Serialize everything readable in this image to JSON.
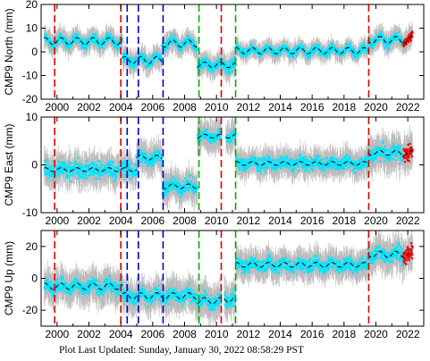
{
  "footer": {
    "text": "Plot Last Updated:   Sunday, January 30, 2022 08:58:29 PST"
  },
  "chart_data": [
    {
      "type": "scatter",
      "ylabel": "CMP9 North (mm)",
      "xlim": [
        1999.0,
        2023.0
      ],
      "ylim": [
        -20,
        20
      ],
      "yticks": [
        -20,
        -10,
        0,
        10,
        20
      ],
      "xticks": [
        2000,
        2002,
        2004,
        2006,
        2008,
        2010,
        2012,
        2014,
        2016,
        2018,
        2020,
        2022
      ],
      "segments": [
        {
          "start": 1999.2,
          "end": 2004.1,
          "level": 4.5,
          "amp": 1.5,
          "spread": 1.6,
          "err": 3.5
        },
        {
          "start": 2004.1,
          "end": 2006.6,
          "level": -3.5,
          "amp": 1.5,
          "spread": 1.8,
          "err": 3.5
        },
        {
          "start": 2006.6,
          "end": 2008.8,
          "level": 3.5,
          "amp": 1.5,
          "spread": 1.6,
          "err": 3.5
        },
        {
          "start": 2008.8,
          "end": 2010.3,
          "level": -5.5,
          "amp": 1.2,
          "spread": 1.8,
          "err": 3.5
        },
        {
          "start": 2010.3,
          "end": 2011.2,
          "level": -5.5,
          "amp": 1.2,
          "spread": 2.0,
          "err": 4.0
        },
        {
          "start": 2011.2,
          "end": 2019.5,
          "level": 0.5,
          "amp": 1.3,
          "spread": 1.5,
          "err": 3.0
        },
        {
          "start": 2019.5,
          "end": 2022.3,
          "level": 5.0,
          "amp": 1.5,
          "spread": 1.8,
          "err": 3.5
        }
      ]
    },
    {
      "type": "scatter",
      "ylabel": "CMP9 East (mm)",
      "xlim": [
        1999.0,
        2023.0
      ],
      "ylim": [
        -10,
        10
      ],
      "yticks": [
        -10,
        0,
        10
      ],
      "xticks": [
        2000,
        2002,
        2004,
        2006,
        2008,
        2010,
        2012,
        2014,
        2016,
        2018,
        2020,
        2022
      ],
      "segments": [
        {
          "start": 1999.2,
          "end": 2004.1,
          "level": -1.0,
          "amp": 0.4,
          "spread": 1.5,
          "err": 2.5
        },
        {
          "start": 2004.1,
          "end": 2005.0,
          "level": -1.0,
          "amp": 0.4,
          "spread": 1.5,
          "err": 2.5
        },
        {
          "start": 2005.0,
          "end": 2006.6,
          "level": 1.5,
          "amp": 0.5,
          "spread": 1.3,
          "err": 2.5
        },
        {
          "start": 2006.6,
          "end": 2008.8,
          "level": -4.5,
          "amp": 0.5,
          "spread": 1.3,
          "err": 2.5
        },
        {
          "start": 2008.8,
          "end": 2010.3,
          "level": 6.0,
          "amp": 0.4,
          "spread": 1.0,
          "err": 2.5
        },
        {
          "start": 2010.6,
          "end": 2011.2,
          "level": 6.0,
          "amp": 0.4,
          "spread": 1.0,
          "err": 2.5
        },
        {
          "start": 2011.2,
          "end": 2019.5,
          "level": 0.3,
          "amp": 0.4,
          "spread": 1.1,
          "err": 2.2
        },
        {
          "start": 2019.5,
          "end": 2022.3,
          "level": 2.5,
          "amp": 0.5,
          "spread": 1.5,
          "err": 2.8
        }
      ]
    },
    {
      "type": "scatter",
      "ylabel": "CMP9 Up (mm)",
      "xlim": [
        1999.0,
        2023.0
      ],
      "ylim": [
        -30,
        30
      ],
      "yticks": [
        -20,
        0,
        20
      ],
      "xticks": [
        2000,
        2002,
        2004,
        2006,
        2008,
        2010,
        2012,
        2014,
        2016,
        2018,
        2020,
        2022
      ],
      "segments": [
        {
          "start": 1999.2,
          "end": 2004.1,
          "level": -5.0,
          "amp": 2.0,
          "spread": 3.5,
          "err": 8.0
        },
        {
          "start": 2004.1,
          "end": 2008.8,
          "level": -11.0,
          "amp": 2.0,
          "spread": 3.5,
          "err": 8.0
        },
        {
          "start": 2008.8,
          "end": 2010.3,
          "level": -14.0,
          "amp": 2.0,
          "spread": 3.5,
          "err": 8.0
        },
        {
          "start": 2010.5,
          "end": 2011.2,
          "level": -13.0,
          "amp": 2.0,
          "spread": 4.0,
          "err": 8.0
        },
        {
          "start": 2011.2,
          "end": 2019.5,
          "level": 8.5,
          "amp": 1.5,
          "spread": 3.5,
          "err": 7.0
        },
        {
          "start": 2019.5,
          "end": 2022.3,
          "level": 15.0,
          "amp": 2.0,
          "spread": 4.0,
          "err": 8.0
        }
      ]
    }
  ],
  "event_lines": [
    {
      "x": 1999.85,
      "color": "#dd0000",
      "kind": "red"
    },
    {
      "x": 2004.0,
      "color": "#dd0000",
      "kind": "red"
    },
    {
      "x": 2004.4,
      "color": "#0000cc",
      "kind": "blue"
    },
    {
      "x": 2005.1,
      "color": "#0000cc",
      "kind": "blue"
    },
    {
      "x": 2006.65,
      "color": "#0000cc",
      "kind": "blue"
    },
    {
      "x": 2008.9,
      "color": "#00aa00",
      "kind": "green"
    },
    {
      "x": 2010.3,
      "color": "#dd0000",
      "kind": "red"
    },
    {
      "x": 2011.2,
      "color": "#00aa00",
      "kind": "green"
    },
    {
      "x": 2019.55,
      "color": "#dd0000",
      "kind": "red"
    }
  ],
  "colors": {
    "data_points": "#00e5ff",
    "error_bars": "#bbbbbb",
    "model_line": "#000000",
    "recent_points": "#ee0000"
  }
}
